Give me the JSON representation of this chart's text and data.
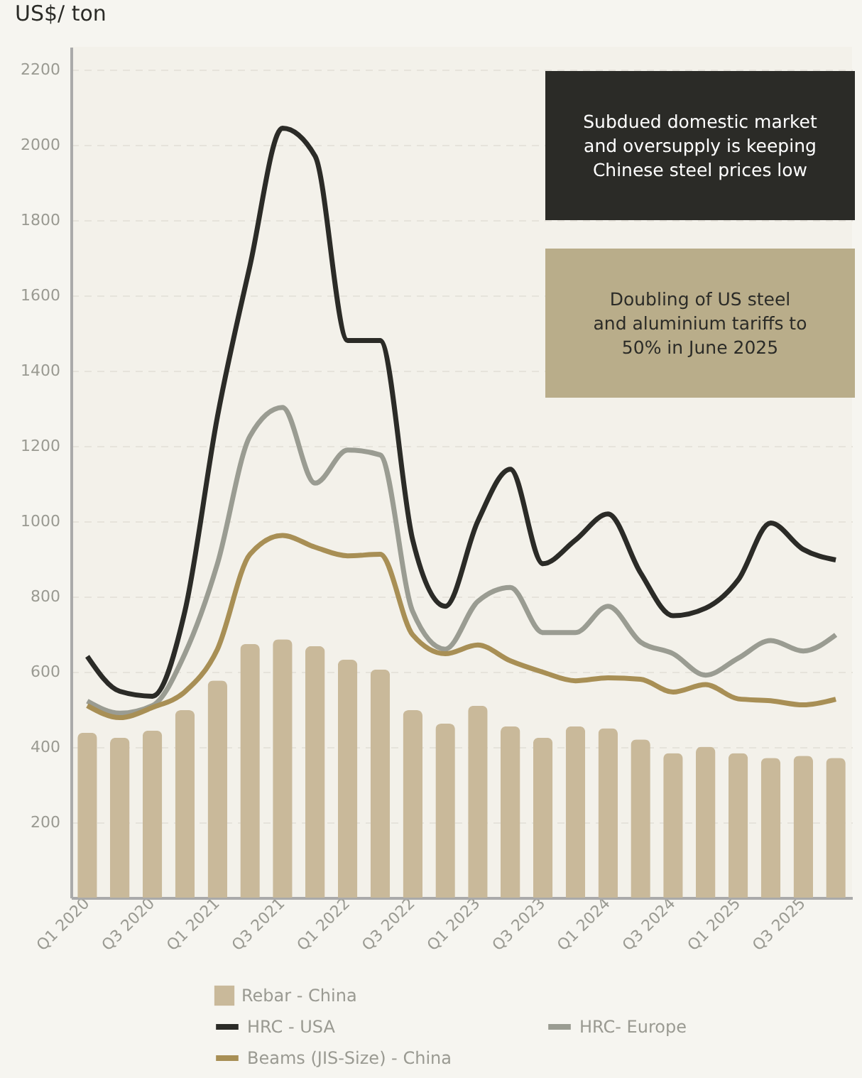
{
  "chart_data": {
    "type": "bar",
    "ylabel": "US$/ ton",
    "categories": [
      "Q1 2020",
      null,
      "Q3 2020",
      null,
      "Q1 2021",
      null,
      "Q3 2021",
      null,
      "Q1 2022",
      null,
      "Q3 2022",
      null,
      "Q1 2023",
      null,
      "Q3 2023",
      null,
      "Q1 2024",
      null,
      "Q3 2024",
      null,
      "Q1 2025",
      null,
      "Q3 2025",
      null
    ],
    "series": [
      {
        "name": "Rebar - China",
        "type": "bar",
        "color": "#c9b99a",
        "values": [
          438,
          425,
          444,
          498,
          577,
          674,
          686,
          668,
          632,
          606,
          498,
          462,
          510,
          455,
          425,
          455,
          450,
          420,
          384,
          401,
          384,
          371,
          377,
          371
        ]
      },
      {
        "name": "HRC - USA",
        "type": "line",
        "color": "#2b2b27",
        "values": [
          641,
          548,
          535,
          761,
          1278,
          1679,
          2044,
          1970,
          1480,
          1480,
          950,
          774,
          1000,
          1138,
          887,
          950,
          1019,
          863,
          749,
          769,
          844,
          995,
          925,
          897
        ]
      },
      {
        "name": "HRC- Europe",
        "type": "line",
        "color": "#9a9c92",
        "values": [
          522,
          490,
          510,
          648,
          887,
          1226,
          1302,
          1101,
          1189,
          1176,
          760,
          660,
          787,
          824,
          704,
          704,
          774,
          679,
          648,
          591,
          636,
          683,
          655,
          698
        ]
      },
      {
        "name": "Beams (JIS-Size) - China",
        "type": "line",
        "color": "#a88f55",
        "values": [
          510,
          478,
          505,
          547,
          660,
          912,
          962,
          931,
          908,
          912,
          698,
          648,
          671,
          629,
          599,
          576,
          584,
          580,
          546,
          566,
          528,
          523,
          512,
          527
        ]
      }
    ],
    "ylim": [
      0,
      2260
    ],
    "yticks": [
      200,
      400,
      600,
      800,
      1000,
      1200,
      1400,
      1600,
      1800,
      2000,
      2200
    ],
    "grid": "y",
    "legend": "bottom",
    "line_style": "solid",
    "marker": "none",
    "annotations": [
      "Subdued domestic market\nand oversupply is keeping\nChinese steel prices low",
      "Doubling of US steel\nand aluminium tariffs to\n50% in June 2025"
    ]
  }
}
